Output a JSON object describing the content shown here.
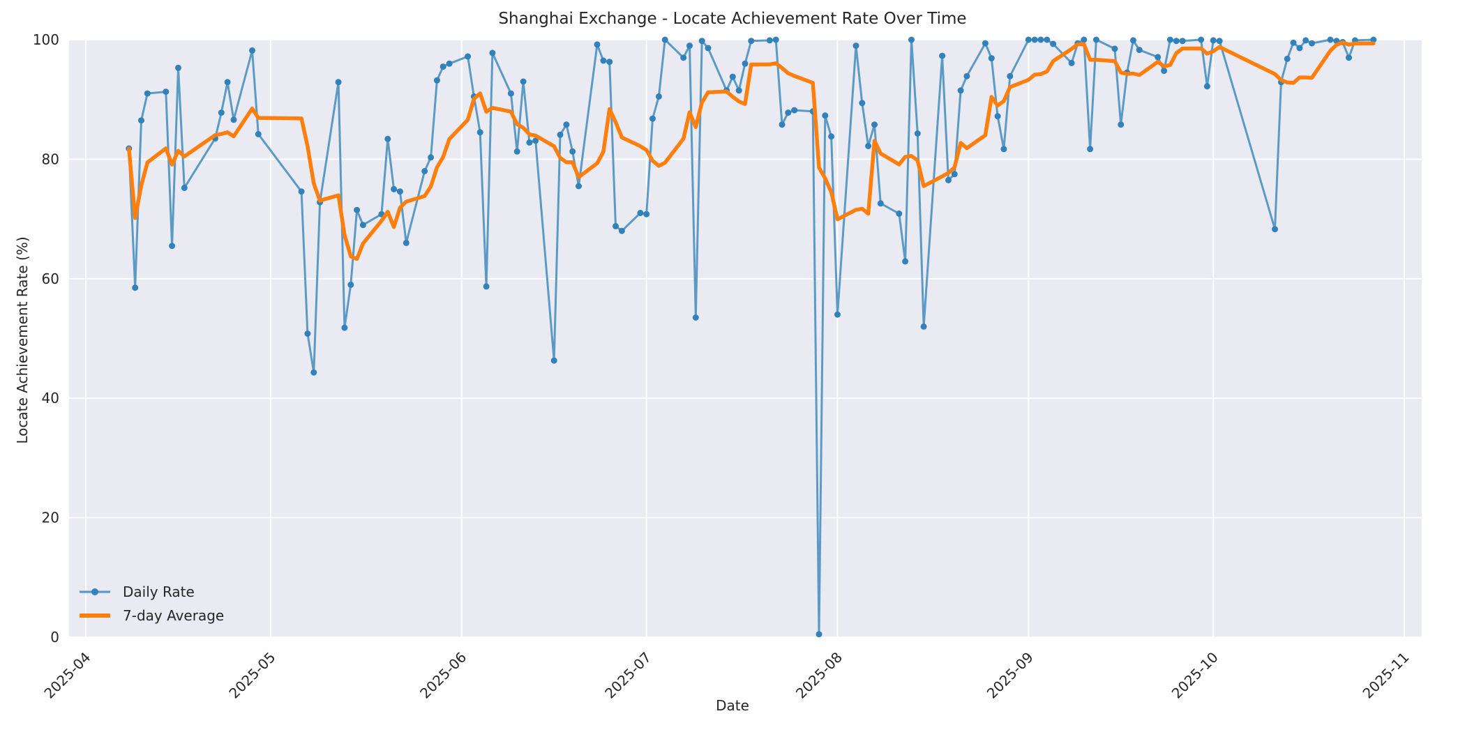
{
  "title": "Shanghai Exchange - Locate Achievement Rate Over Time",
  "axes": {
    "xlabel": "Date",
    "ylabel": "Locate Achievement Rate (%)"
  },
  "legend": {
    "daily_label": "Daily Rate",
    "avg_label": "7-day Average"
  },
  "colors": {
    "figure_bg": "#ffffff",
    "axes_bg": "#eaeaf2",
    "grid": "#ffffff",
    "text": "#262626",
    "daily_line": "#5c9ac6",
    "daily_marker": "#3181ba",
    "avg_line": "#ff7f0e"
  },
  "chart_data": {
    "type": "line",
    "title": "Shanghai Exchange - Locate Achievement Rate Over Time",
    "xlabel": "Date",
    "ylabel": "Locate Achievement Rate (%)",
    "ylim": [
      0,
      100
    ],
    "yticks": [
      0,
      20,
      40,
      60,
      80,
      100
    ],
    "xtick_labels": [
      "2025-04",
      "2025-05",
      "2025-06",
      "2025-07",
      "2025-08",
      "2025-09",
      "2025-10",
      "2025-11"
    ],
    "xtick_dates": [
      "2025-04-01",
      "2025-05-01",
      "2025-06-01",
      "2025-07-01",
      "2025-08-01",
      "2025-09-01",
      "2025-10-01",
      "2025-11-01"
    ],
    "grid": true,
    "legend_position": "lower left",
    "series": [
      {
        "name": "Daily Rate",
        "style": "line+markers",
        "dates": [
          "2025-04-08",
          "2025-04-09",
          "2025-04-10",
          "2025-04-11",
          "2025-04-14",
          "2025-04-15",
          "2025-04-16",
          "2025-04-17",
          "2025-04-22",
          "2025-04-23",
          "2025-04-24",
          "2025-04-25",
          "2025-04-28",
          "2025-04-29",
          "2025-05-06",
          "2025-05-07",
          "2025-05-08",
          "2025-05-09",
          "2025-05-12",
          "2025-05-13",
          "2025-05-14",
          "2025-05-15",
          "2025-05-16",
          "2025-05-19",
          "2025-05-20",
          "2025-05-21",
          "2025-05-22",
          "2025-05-23",
          "2025-05-26",
          "2025-05-27",
          "2025-05-28",
          "2025-05-29",
          "2025-05-30",
          "2025-06-02",
          "2025-06-03",
          "2025-06-04",
          "2025-06-05",
          "2025-06-06",
          "2025-06-09",
          "2025-06-10",
          "2025-06-11",
          "2025-06-12",
          "2025-06-13",
          "2025-06-16",
          "2025-06-17",
          "2025-06-18",
          "2025-06-19",
          "2025-06-20",
          "2025-06-23",
          "2025-06-24",
          "2025-06-25",
          "2025-06-26",
          "2025-06-27",
          "2025-06-30",
          "2025-07-01",
          "2025-07-02",
          "2025-07-03",
          "2025-07-04",
          "2025-07-07",
          "2025-07-08",
          "2025-07-09",
          "2025-07-10",
          "2025-07-11",
          "2025-07-14",
          "2025-07-15",
          "2025-07-16",
          "2025-07-17",
          "2025-07-18",
          "2025-07-21",
          "2025-07-22",
          "2025-07-23",
          "2025-07-24",
          "2025-07-25",
          "2025-07-28",
          "2025-07-29",
          "2025-07-30",
          "2025-07-31",
          "2025-08-01",
          "2025-08-04",
          "2025-08-05",
          "2025-08-06",
          "2025-08-07",
          "2025-08-08",
          "2025-08-11",
          "2025-08-12",
          "2025-08-13",
          "2025-08-14",
          "2025-08-15",
          "2025-08-18",
          "2025-08-19",
          "2025-08-20",
          "2025-08-21",
          "2025-08-22",
          "2025-08-25",
          "2025-08-26",
          "2025-08-27",
          "2025-08-28",
          "2025-08-29",
          "2025-09-01",
          "2025-09-02",
          "2025-09-03",
          "2025-09-04",
          "2025-09-05",
          "2025-09-08",
          "2025-09-09",
          "2025-09-10",
          "2025-09-11",
          "2025-09-12",
          "2025-09-15",
          "2025-09-16",
          "2025-09-17",
          "2025-09-18",
          "2025-09-19",
          "2025-09-22",
          "2025-09-23",
          "2025-09-24",
          "2025-09-25",
          "2025-09-26",
          "2025-09-29",
          "2025-09-30",
          "2025-10-01",
          "2025-10-02",
          "2025-10-11",
          "2025-10-12",
          "2025-10-13",
          "2025-10-14",
          "2025-10-15",
          "2025-10-16",
          "2025-10-17",
          "2025-10-20",
          "2025-10-21",
          "2025-10-22",
          "2025-10-23",
          "2025-10-24",
          "2025-10-27"
        ],
        "values": [
          81.8,
          58.5,
          86.5,
          91.0,
          91.3,
          65.5,
          95.3,
          75.2,
          83.5,
          87.8,
          92.9,
          86.6,
          98.2,
          84.2,
          74.6,
          50.8,
          44.3,
          72.8,
          92.9,
          51.8,
          59.0,
          71.5,
          69.0,
          70.8,
          83.4,
          75.0,
          74.6,
          66.0,
          78.0,
          80.3,
          93.2,
          95.5,
          96.0,
          97.2,
          90.5,
          84.5,
          58.7,
          97.8,
          91.0,
          81.3,
          93.0,
          82.8,
          83.1,
          46.3,
          84.1,
          85.8,
          81.3,
          75.5,
          99.2,
          96.5,
          96.3,
          68.8,
          68.0,
          71.0,
          70.8,
          86.8,
          90.5,
          100.0,
          97.0,
          99.0,
          53.5,
          99.8,
          98.6,
          91.5,
          93.8,
          91.5,
          96.0,
          99.8,
          99.9,
          100.0,
          85.8,
          87.8,
          88.2,
          88.0,
          0.5,
          87.3,
          83.8,
          54.0,
          99.0,
          89.4,
          82.2,
          85.8,
          72.6,
          70.9,
          62.9,
          100.0,
          84.3,
          52.0,
          97.3,
          76.5,
          77.5,
          91.5,
          93.9,
          99.4,
          96.9,
          87.2,
          81.7,
          93.9,
          100.0,
          100.0,
          100.0,
          100.0,
          99.3,
          96.1,
          99.4,
          100.0,
          81.7,
          100.0,
          98.5,
          85.8,
          94.5,
          99.9,
          98.3,
          97.1,
          94.8,
          100.0,
          99.8,
          99.8,
          100.0,
          92.2,
          99.9,
          99.8,
          68.3,
          92.9,
          96.8,
          99.5,
          98.6,
          99.9,
          99.4,
          100.0,
          99.8,
          99.6,
          97.0,
          99.9,
          100.0
        ]
      },
      {
        "name": "7-day Average",
        "style": "line",
        "derived": "rolling_mean_window_7_min_periods_1_of_daily_series"
      }
    ]
  }
}
